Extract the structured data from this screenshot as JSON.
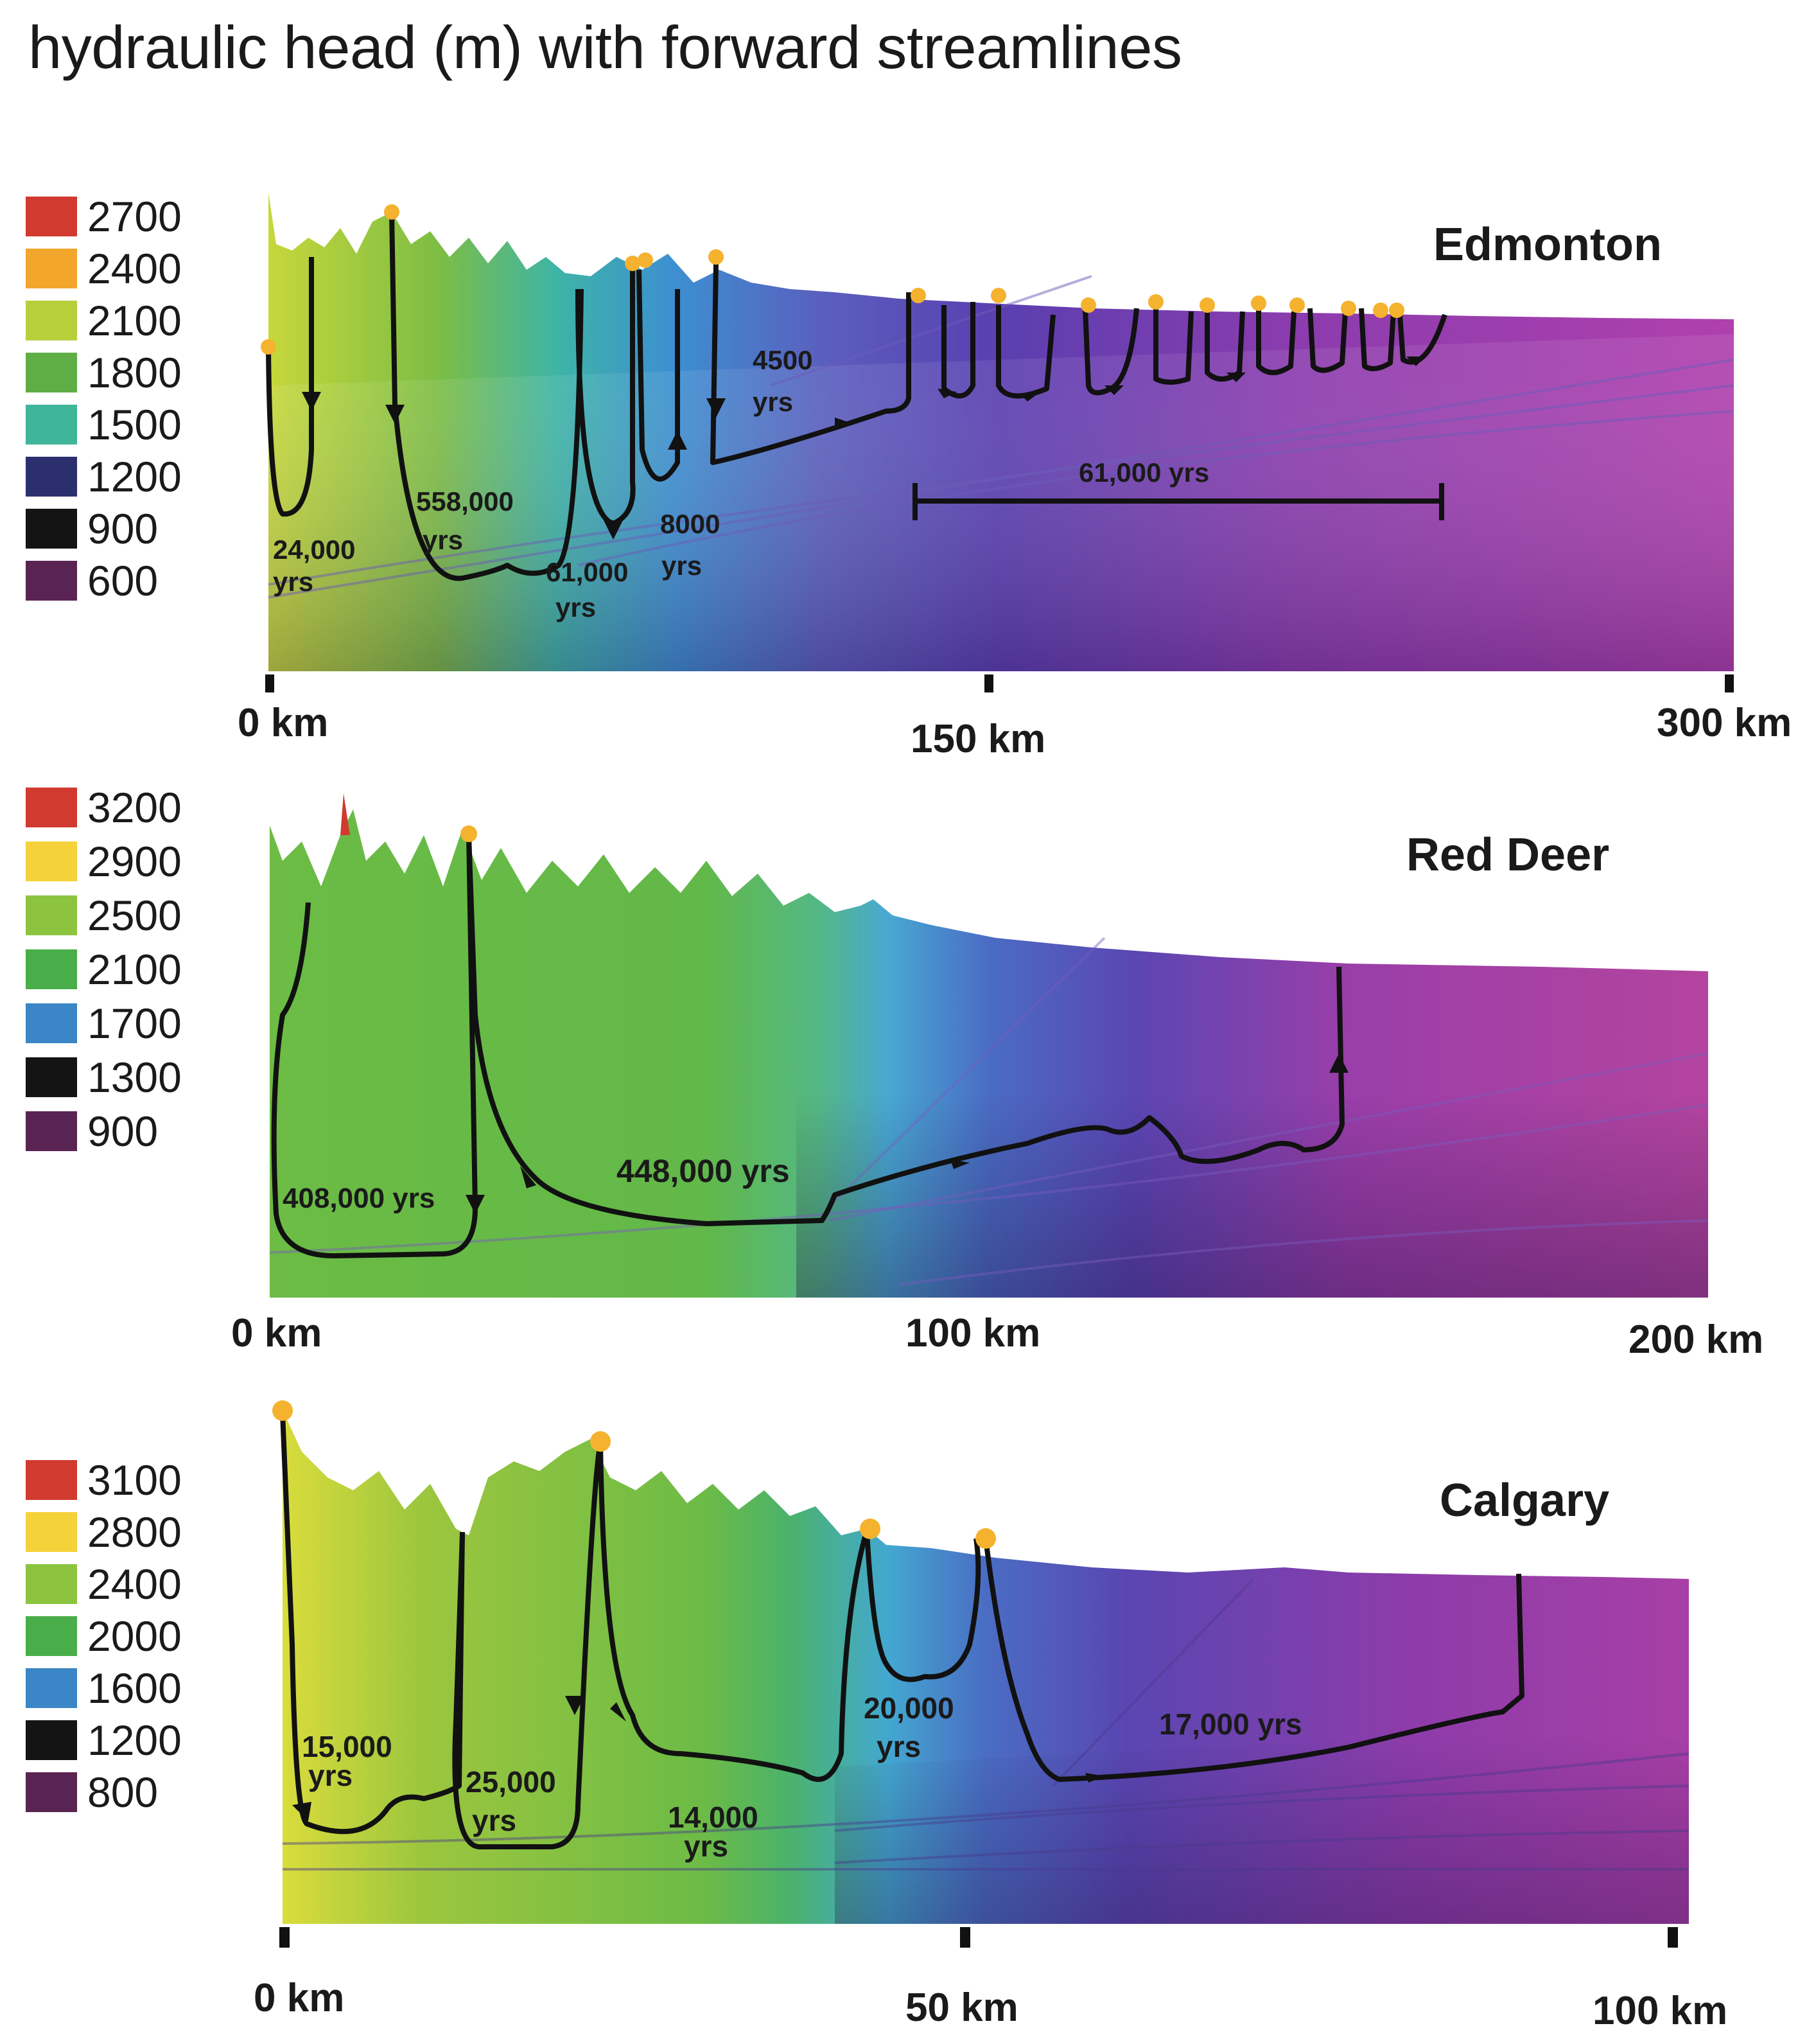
{
  "title": "hydraulic head (m) with forward streamlines",
  "panels": [
    {
      "city": "Edmonton",
      "legend": [
        {
          "value": "2700",
          "color": "#d13a2e"
        },
        {
          "value": "2400",
          "color": "#f2a62c"
        },
        {
          "value": "2100",
          "color": "#b8cf3c"
        },
        {
          "value": "1800",
          "color": "#5fae45"
        },
        {
          "value": "1500",
          "color": "#3fb59a"
        },
        {
          "value": "1200",
          "color": "#2c2f6e"
        },
        {
          "value": "900",
          "color": "#141414"
        },
        {
          "value": "600",
          "color": "#5a2452"
        }
      ],
      "distance_labels": [
        "0 km",
        "150 km",
        "300 km"
      ],
      "travel_times": [
        "24,000",
        "yrs",
        "558,000",
        "yrs",
        "61,000",
        "yrs",
        "8000",
        "yrs",
        "4500",
        "yrs",
        "61,000 yrs"
      ]
    },
    {
      "city": "Red Deer",
      "legend": [
        {
          "value": "3200",
          "color": "#d13a2e"
        },
        {
          "value": "2900",
          "color": "#f5d23a"
        },
        {
          "value": "2500",
          "color": "#8cc43f"
        },
        {
          "value": "2100",
          "color": "#49ad4a"
        },
        {
          "value": "1700",
          "color": "#3a86c6"
        },
        {
          "value": "1300",
          "color": "#141414"
        },
        {
          "value": "900",
          "color": "#5a2452"
        }
      ],
      "distance_labels": [
        "0 km",
        "100 km",
        "200 km"
      ],
      "travel_times": [
        "408,000 yrs",
        "448,000 yrs"
      ]
    },
    {
      "city": "Calgary",
      "legend": [
        {
          "value": "3100",
          "color": "#d13a2e"
        },
        {
          "value": "2800",
          "color": "#f5d23a"
        },
        {
          "value": "2400",
          "color": "#8cc43f"
        },
        {
          "value": "2000",
          "color": "#49ad4a"
        },
        {
          "value": "1600",
          "color": "#3a86c6"
        },
        {
          "value": "1200",
          "color": "#141414"
        },
        {
          "value": "800",
          "color": "#5a2452"
        }
      ],
      "distance_labels": [
        "0 km",
        "50 km",
        "100 km"
      ],
      "travel_times": [
        "15,000",
        "yrs",
        "25,000",
        "yrs",
        "14,000",
        "yrs",
        "20,000",
        "yrs",
        "17,000 yrs"
      ]
    }
  ]
}
